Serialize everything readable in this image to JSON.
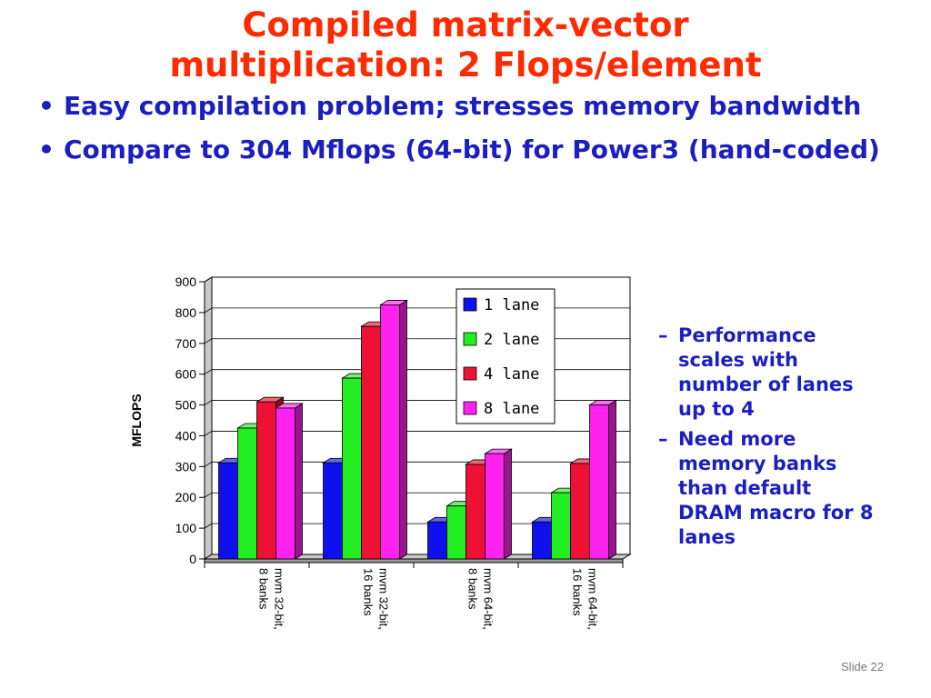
{
  "slide": {
    "title_line1": "Compiled matrix-vector",
    "title_line2": "multiplication: 2 Flops/element",
    "bullets": [
      "Easy compilation problem; stresses memory bandwidth",
      "Compare to 304 Mflops (64-bit) for Power3 (hand-coded)"
    ],
    "side_bullets": [
      "Performance scales with number of lanes up to 4",
      "Need more memory banks than default DRAM macro for 8 lanes"
    ],
    "slide_number": "Slide 22"
  },
  "colors": {
    "title": "#ff2a00",
    "text": "#1b1fbf",
    "series": [
      "#1010ee",
      "#22ee22",
      "#ee1133",
      "#ff22ee"
    ]
  },
  "chart_data": {
    "type": "bar",
    "title": "",
    "xlabel": "",
    "ylabel": "MFLOPS",
    "ylim": [
      0,
      900
    ],
    "yticks": [
      "0",
      "100",
      "200",
      "300",
      "400",
      "500",
      "600",
      "700",
      "800",
      "900"
    ],
    "categories": [
      [
        "mvm 32-bit,",
        "8 banks"
      ],
      [
        "mvm 32-bit,",
        "16 banks"
      ],
      [
        "mvm 64-bit,",
        "8 banks"
      ],
      [
        "mvm 64-bit,",
        "16 banks"
      ]
    ],
    "series": [
      {
        "name": "1 lane",
        "values": [
          312,
          312,
          120,
          120
        ]
      },
      {
        "name": "2 lane",
        "values": [
          425,
          587,
          172,
          215
        ]
      },
      {
        "name": "4 lane",
        "values": [
          510,
          755,
          307,
          310
        ]
      },
      {
        "name": "8 lane",
        "values": [
          490,
          825,
          342,
          500
        ]
      }
    ],
    "grid": true,
    "legend": "top-right",
    "style": "3d"
  }
}
